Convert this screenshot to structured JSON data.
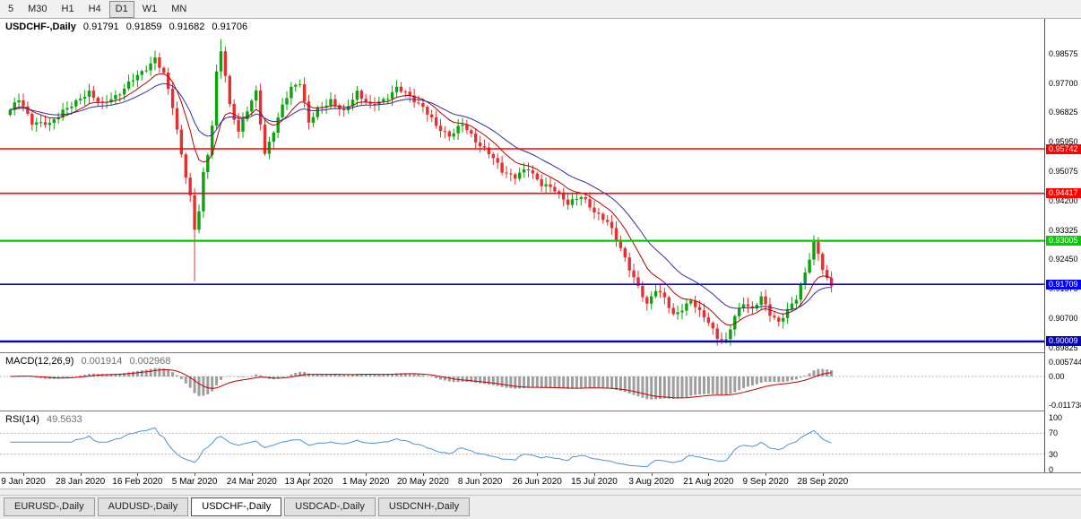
{
  "toolbar": {
    "timeframes": [
      {
        "label": "5",
        "active": false
      },
      {
        "label": "M30",
        "active": false
      },
      {
        "label": "H1",
        "active": false
      },
      {
        "label": "H4",
        "active": false
      },
      {
        "label": "D1",
        "active": true
      },
      {
        "label": "W1",
        "active": false
      },
      {
        "label": "MN",
        "active": false
      }
    ]
  },
  "chart_header": {
    "title": "USDCHF-,Daily",
    "open": "0.91791",
    "high": "0.91859",
    "low": "0.91682",
    "close": "0.91706"
  },
  "macd_header": {
    "label": "MACD(12,26,9)",
    "value_main": "0.001914",
    "value_signal": "0.002968"
  },
  "rsi_header": {
    "label": "RSI(14)",
    "value": "49.5633"
  },
  "tabs": [
    {
      "label": "EURUSD-,Daily",
      "active": false
    },
    {
      "label": "AUDUSD-,Daily",
      "active": false
    },
    {
      "label": "USDCHF-,Daily",
      "active": true
    },
    {
      "label": "USDCAD-,Daily",
      "active": false
    },
    {
      "label": "USDCNH-,Daily",
      "active": false
    }
  ],
  "chart_data": {
    "type": "candlestick",
    "symbol": "USDCHF-",
    "timeframe": "Daily",
    "current_bar": {
      "open": 0.91791,
      "high": 0.91859,
      "low": 0.91682,
      "close": 0.91706
    },
    "y_axis_labels": [
      "0.98575",
      "0.97700",
      "0.96825",
      "0.95950",
      "0.95075",
      "0.94200",
      "0.93325",
      "0.92450",
      "0.91575",
      "0.90700",
      "0.89825"
    ],
    "x_labels": [
      {
        "text": "9 Jan 2020",
        "index": 3
      },
      {
        "text": "28 Jan 2020",
        "index": 16
      },
      {
        "text": "16 Feb 2020",
        "index": 29
      },
      {
        "text": "5 Mar 2020",
        "index": 42
      },
      {
        "text": "24 Mar 2020",
        "index": 55
      },
      {
        "text": "13 Apr 2020",
        "index": 68
      },
      {
        "text": "1 May 2020",
        "index": 81
      },
      {
        "text": "20 May 2020",
        "index": 94
      },
      {
        "text": "8 Jun 2020",
        "index": 107
      },
      {
        "text": "26 Jun 2020",
        "index": 120
      },
      {
        "text": "15 Jul 2020",
        "index": 133
      },
      {
        "text": "3 Aug 2020",
        "index": 146
      },
      {
        "text": "21 Aug 2020",
        "index": 159
      },
      {
        "text": "9 Sep 2020",
        "index": 172
      },
      {
        "text": "28 Sep 2020",
        "index": 185
      }
    ],
    "horizontal_lines": [
      {
        "price": 0.95742,
        "label": "0.95742",
        "color": "#ff0000",
        "width": 1.6
      },
      {
        "price": 0.94417,
        "label": "0.94417",
        "color": "#ff0000",
        "width": 1.6
      },
      {
        "price": 0.93005,
        "label": "0.93005",
        "color": "#00cc00",
        "width": 2.2
      },
      {
        "price": 0.91709,
        "label": "0.91709",
        "color": "#0000ff",
        "width": 1.6
      },
      {
        "price": 0.90009,
        "label": "0.90009",
        "color": "#0000c0",
        "width": 2.4
      }
    ],
    "indicators": {
      "macd": {
        "params": [
          12,
          26,
          9
        ],
        "value_main": 0.001914,
        "value_signal": 0.002968,
        "axis_labels": [
          "0.005744",
          "0.00",
          "-0.011738"
        ]
      },
      "rsi": {
        "period": 14,
        "value": 49.5633,
        "axis_labels": [
          "100",
          "70",
          "30",
          "0"
        ],
        "levels": [
          70,
          30
        ]
      }
    },
    "candle_count": 188,
    "close_anchors": [
      [
        0,
        0.969
      ],
      [
        2,
        0.972
      ],
      [
        5,
        0.9655
      ],
      [
        9,
        0.9645
      ],
      [
        12,
        0.969
      ],
      [
        15,
        0.971
      ],
      [
        18,
        0.9745
      ],
      [
        21,
        0.9705
      ],
      [
        24,
        0.973
      ],
      [
        27,
        0.977
      ],
      [
        30,
        0.98
      ],
      [
        33,
        0.9845
      ],
      [
        35,
        0.9795
      ],
      [
        37,
        0.97
      ],
      [
        39,
        0.956
      ],
      [
        41,
        0.943
      ],
      [
        42,
        0.933
      ],
      [
        43,
        0.939
      ],
      [
        44,
        0.95
      ],
      [
        45,
        0.956
      ],
      [
        46,
        0.965
      ],
      [
        47,
        0.98
      ],
      [
        48,
        0.9865
      ],
      [
        49,
        0.979
      ],
      [
        50,
        0.97
      ],
      [
        52,
        0.963
      ],
      [
        54,
        0.969
      ],
      [
        56,
        0.974
      ],
      [
        58,
        0.956
      ],
      [
        60,
        0.963
      ],
      [
        62,
        0.97
      ],
      [
        64,
        0.9755
      ],
      [
        66,
        0.9775
      ],
      [
        68,
        0.965
      ],
      [
        70,
        0.969
      ],
      [
        73,
        0.972
      ],
      [
        76,
        0.968
      ],
      [
        79,
        0.9745
      ],
      [
        82,
        0.97
      ],
      [
        85,
        0.972
      ],
      [
        88,
        0.9755
      ],
      [
        91,
        0.973
      ],
      [
        94,
        0.97
      ],
      [
        97,
        0.964
      ],
      [
        100,
        0.9615
      ],
      [
        103,
        0.9645
      ],
      [
        106,
        0.96
      ],
      [
        109,
        0.956
      ],
      [
        112,
        0.951
      ],
      [
        115,
        0.949
      ],
      [
        118,
        0.9515
      ],
      [
        121,
        0.947
      ],
      [
        124,
        0.945
      ],
      [
        127,
        0.9415
      ],
      [
        130,
        0.943
      ],
      [
        133,
        0.939
      ],
      [
        136,
        0.9355
      ],
      [
        139,
        0.928
      ],
      [
        141,
        0.922
      ],
      [
        143,
        0.916
      ],
      [
        145,
        0.911
      ],
      [
        147,
        0.916
      ],
      [
        149,
        0.913
      ],
      [
        151,
        0.9075
      ],
      [
        153,
        0.91
      ],
      [
        155,
        0.9125
      ],
      [
        157,
        0.9085
      ],
      [
        159,
        0.906
      ],
      [
        161,
        0.9015
      ],
      [
        163,
        0.9
      ],
      [
        165,
        0.9075
      ],
      [
        167,
        0.912
      ],
      [
        169,
        0.9095
      ],
      [
        171,
        0.913
      ],
      [
        173,
        0.9085
      ],
      [
        175,
        0.906
      ],
      [
        177,
        0.909
      ],
      [
        179,
        0.913
      ],
      [
        181,
        0.921
      ],
      [
        183,
        0.929
      ],
      [
        184,
        0.926
      ],
      [
        185,
        0.9215
      ],
      [
        186,
        0.9185
      ],
      [
        187,
        0.9171
      ]
    ],
    "wick_overrides": {
      "33": {
        "high": 0.9852
      },
      "42": {
        "low": 0.918
      },
      "48": {
        "high": 0.9901
      },
      "163": {
        "low": 0.8995
      },
      "183": {
        "high": 0.9305
      },
      "187": {
        "high": 0.91859,
        "low": 0.91682
      }
    },
    "colors": {
      "up": "#0ca30c",
      "down": "#e53030",
      "ma_fast": "#b30000",
      "ma_slow": "#2f2f9d",
      "macd_hist": "#9e9e9e",
      "macd_signal": "#c00000",
      "rsi_line": "#4f93d1",
      "level_dash": "#b8b8b8"
    }
  }
}
